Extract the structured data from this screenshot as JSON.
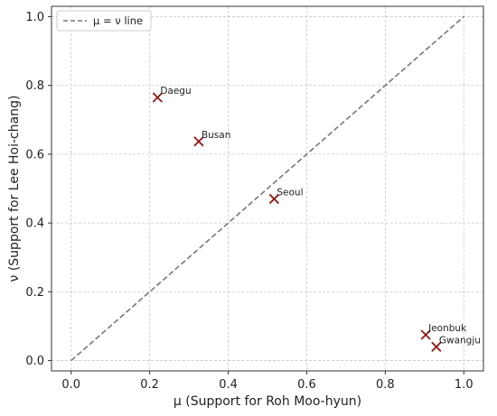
{
  "chart_data": {
    "type": "scatter",
    "xlabel": "μ (Support for Roh Moo-hyun)",
    "ylabel": "ν (Support for Lee Hoi-chang)",
    "xlim": [
      -0.05,
      1.05
    ],
    "ylim": [
      -0.03,
      1.03
    ],
    "xticks": [
      "0.0",
      "0.2",
      "0.4",
      "0.6",
      "0.8",
      "1.0"
    ],
    "yticks": [
      "0.0",
      "0.2",
      "0.4",
      "0.6",
      "0.8",
      "1.0"
    ],
    "grid": true,
    "legend": {
      "placement": "top-left",
      "entries": [
        "μ = ν line"
      ]
    },
    "reference_line": {
      "name": "μ = ν line",
      "from": [
        0,
        0
      ],
      "to": [
        1,
        1
      ],
      "style": "dashed",
      "color": "#777777"
    },
    "marker": {
      "shape": "x",
      "color": "#8b1a1a"
    },
    "points": [
      {
        "label": "Daegu",
        "x": 0.22,
        "y": 0.765
      },
      {
        "label": "Busan",
        "x": 0.325,
        "y": 0.637
      },
      {
        "label": "Seoul",
        "x": 0.517,
        "y": 0.47
      },
      {
        "label": "Jeonbuk",
        "x": 0.903,
        "y": 0.075
      },
      {
        "label": "Gwangju",
        "x": 0.93,
        "y": 0.04
      }
    ]
  }
}
